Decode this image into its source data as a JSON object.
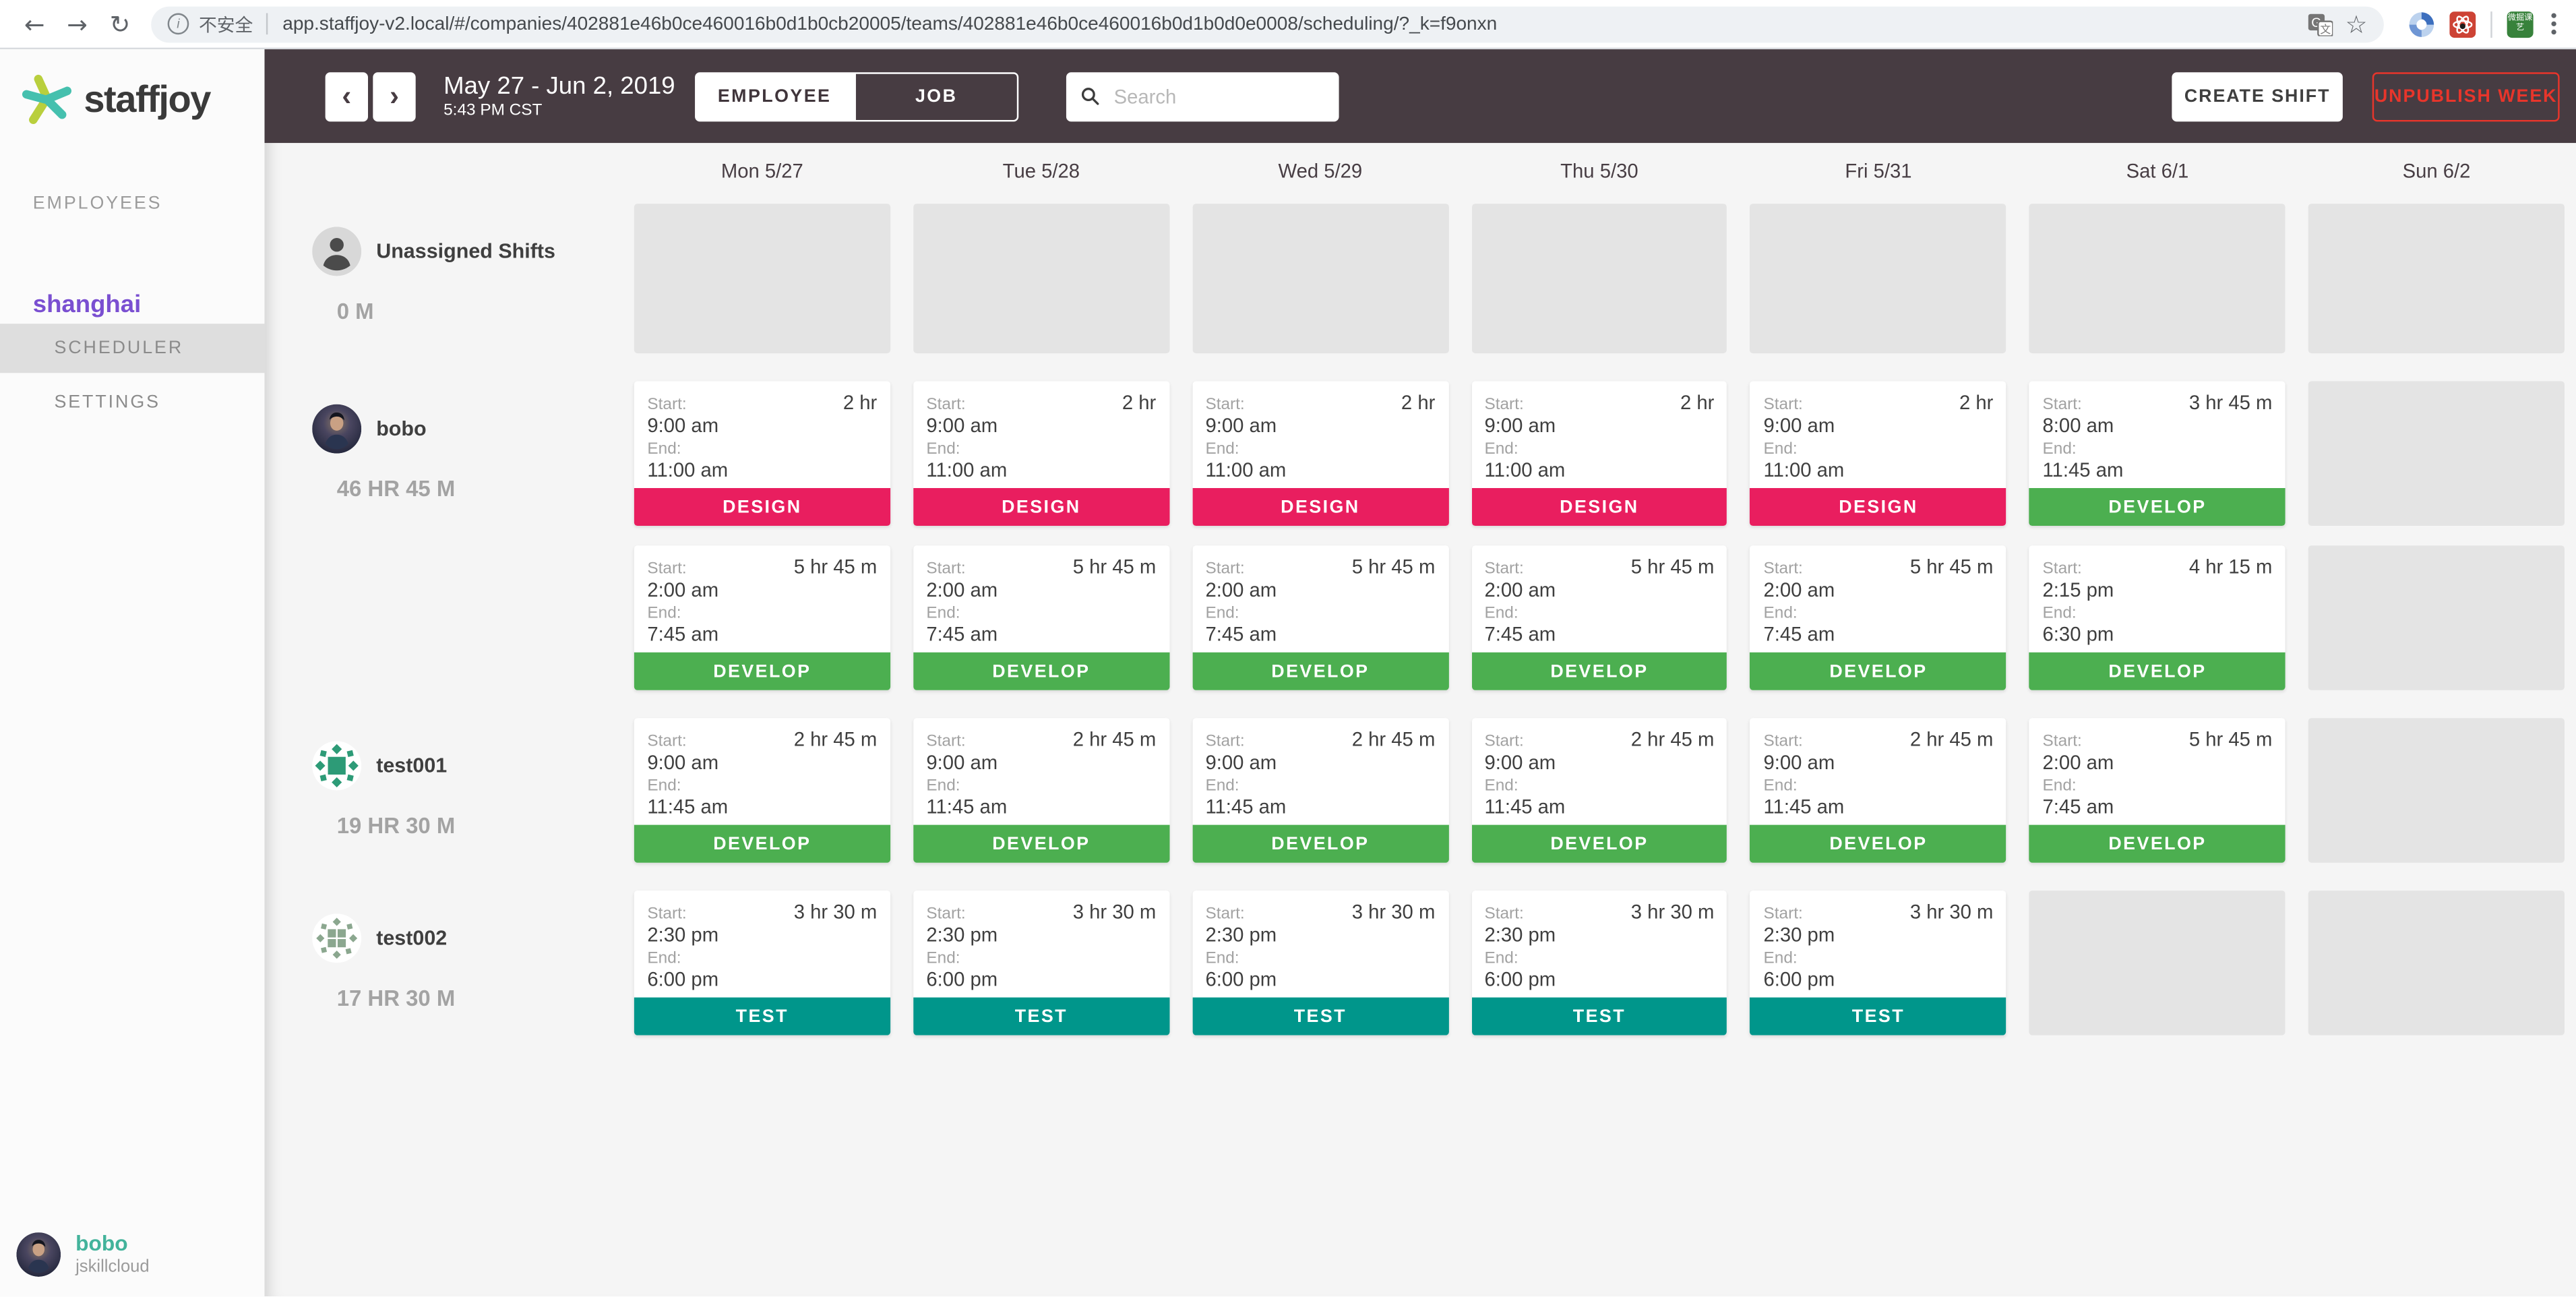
{
  "browser": {
    "security_label": "不安全",
    "url": "app.staffjoy-v2.local/#/companies/402881e46b0ce460016b0d1b0cb20005/teams/402881e46b0ce460016b0d1b0d0e0008/scheduling/?_k=f9onxn",
    "extension_badge": "微掘课艺"
  },
  "sidebar": {
    "logo_text": "staffjoy",
    "items": [
      {
        "label": "EMPLOYEES"
      }
    ],
    "team_name": "shanghai",
    "menu": [
      {
        "label": "SCHEDULER",
        "active": true
      },
      {
        "label": "SETTINGS",
        "active": false
      }
    ],
    "user": {
      "name": "bobo",
      "company": "jskillcloud"
    }
  },
  "topbar": {
    "date_range": "May 27 - Jun 2, 2019",
    "time": "5:43 PM CST",
    "toggle": [
      {
        "label": "EMPLOYEE",
        "active": true
      },
      {
        "label": "JOB",
        "active": false
      }
    ],
    "search_placeholder": "Search",
    "create_shift_label": "CREATE SHIFT",
    "unpublish_label": "UNPUBLISH WEEK"
  },
  "calendar": {
    "days": [
      "Mon 5/27",
      "Tue 5/28",
      "Wed 5/29",
      "Thu 5/30",
      "Fri 5/31",
      "Sat 6/1",
      "Sun 6/2"
    ],
    "labels": {
      "start": "Start:",
      "end": "End:"
    },
    "jobs": {
      "DESIGN": "#e91e5f",
      "DEVELOP": "#4caf50",
      "TEST": "#00968b"
    },
    "rows": [
      {
        "name": "Unassigned Shifts",
        "hours": "0 M",
        "avatar": "person",
        "lines": [
          [
            null,
            null,
            null,
            null,
            null,
            null,
            null
          ]
        ]
      },
      {
        "name": "bobo",
        "hours": "46 HR 45 M",
        "avatar": "photo",
        "lines": [
          [
            {
              "duration": "2 hr",
              "start": "9:00 am",
              "end": "11:00 am",
              "job": "DESIGN"
            },
            {
              "duration": "2 hr",
              "start": "9:00 am",
              "end": "11:00 am",
              "job": "DESIGN"
            },
            {
              "duration": "2 hr",
              "start": "9:00 am",
              "end": "11:00 am",
              "job": "DESIGN"
            },
            {
              "duration": "2 hr",
              "start": "9:00 am",
              "end": "11:00 am",
              "job": "DESIGN"
            },
            {
              "duration": "2 hr",
              "start": "9:00 am",
              "end": "11:00 am",
              "job": "DESIGN"
            },
            {
              "duration": "3 hr 45 m",
              "start": "8:00 am",
              "end": "11:45 am",
              "job": "DEVELOP"
            },
            null
          ],
          [
            {
              "duration": "5 hr 45 m",
              "start": "2:00 am",
              "end": "7:45 am",
              "job": "DEVELOP"
            },
            {
              "duration": "5 hr 45 m",
              "start": "2:00 am",
              "end": "7:45 am",
              "job": "DEVELOP"
            },
            {
              "duration": "5 hr 45 m",
              "start": "2:00 am",
              "end": "7:45 am",
              "job": "DEVELOP"
            },
            {
              "duration": "5 hr 45 m",
              "start": "2:00 am",
              "end": "7:45 am",
              "job": "DEVELOP"
            },
            {
              "duration": "5 hr 45 m",
              "start": "2:00 am",
              "end": "7:45 am",
              "job": "DEVELOP"
            },
            {
              "duration": "4 hr 15 m",
              "start": "2:15 pm",
              "end": "6:30 pm",
              "job": "DEVELOP"
            },
            null
          ]
        ]
      },
      {
        "name": "test001",
        "hours": "19 HR 30 M",
        "avatar": "identicon1",
        "lines": [
          [
            {
              "duration": "2 hr 45 m",
              "start": "9:00 am",
              "end": "11:45 am",
              "job": "DEVELOP"
            },
            {
              "duration": "2 hr 45 m",
              "start": "9:00 am",
              "end": "11:45 am",
              "job": "DEVELOP"
            },
            {
              "duration": "2 hr 45 m",
              "start": "9:00 am",
              "end": "11:45 am",
              "job": "DEVELOP"
            },
            {
              "duration": "2 hr 45 m",
              "start": "9:00 am",
              "end": "11:45 am",
              "job": "DEVELOP"
            },
            {
              "duration": "2 hr 45 m",
              "start": "9:00 am",
              "end": "11:45 am",
              "job": "DEVELOP"
            },
            {
              "duration": "5 hr 45 m",
              "start": "2:00 am",
              "end": "7:45 am",
              "job": "DEVELOP"
            },
            null
          ]
        ]
      },
      {
        "name": "test002",
        "hours": "17 HR 30 M",
        "avatar": "identicon2",
        "lines": [
          [
            {
              "duration": "3 hr 30 m",
              "start": "2:30 pm",
              "end": "6:00 pm",
              "job": "TEST"
            },
            {
              "duration": "3 hr 30 m",
              "start": "2:30 pm",
              "end": "6:00 pm",
              "job": "TEST"
            },
            {
              "duration": "3 hr 30 m",
              "start": "2:30 pm",
              "end": "6:00 pm",
              "job": "TEST"
            },
            {
              "duration": "3 hr 30 m",
              "start": "2:30 pm",
              "end": "6:00 pm",
              "job": "TEST"
            },
            {
              "duration": "3 hr 30 m",
              "start": "2:30 pm",
              "end": "6:00 pm",
              "job": "TEST"
            },
            null,
            null
          ]
        ]
      }
    ]
  }
}
